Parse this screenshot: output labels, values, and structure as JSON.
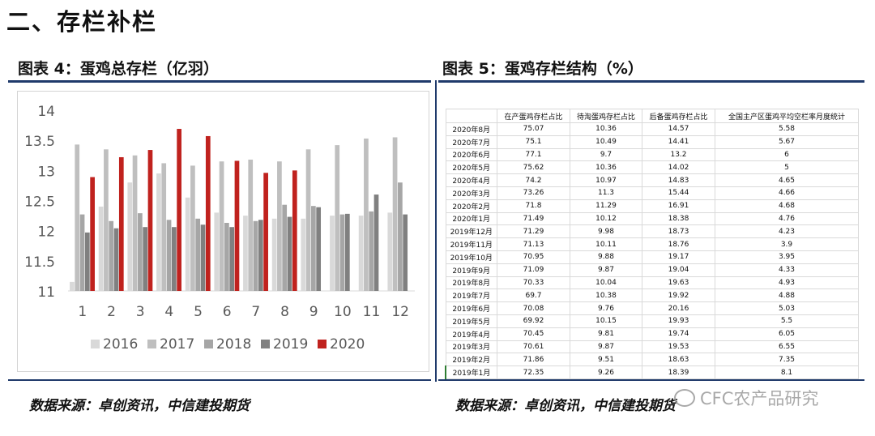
{
  "section": {
    "title": "二、存栏补栏"
  },
  "figure4": {
    "title": "图表 4：蛋鸡总存栏（亿羽）"
  },
  "figure5": {
    "title": "图表 5：蛋鸡存栏结构（%）"
  },
  "source_left": "数据来源：卓创资讯，中信建投期货",
  "source_right": "数据来源：卓创资讯，中信建投期货",
  "watermark": "CFC农产品研究",
  "colors": {
    "s2016": "#d9d9d9",
    "s2017": "#bfbfbf",
    "s2018": "#a6a6a6",
    "s2019": "#808080",
    "s2020": "#c0221e",
    "rule": "#1f3a6b"
  },
  "chart_data": {
    "type": "bar",
    "categories": [
      "1",
      "2",
      "3",
      "4",
      "5",
      "6",
      "7",
      "8",
      "9",
      "10",
      "11",
      "12"
    ],
    "ylim": [
      11,
      14
    ],
    "yticks": [
      "11",
      "11.5",
      "12",
      "12.5",
      "13",
      "13.5",
      "14"
    ],
    "legend_position": "bottom",
    "grid": false,
    "series": [
      {
        "name": "2016",
        "values": [
          11.15,
          12.4,
          12.8,
          12.95,
          12.55,
          12.3,
          12.25,
          12.2,
          12.2,
          12.25,
          12.25,
          12.3
        ]
      },
      {
        "name": "2017",
        "values": [
          13.43,
          13.35,
          13.25,
          13.12,
          13.08,
          13.15,
          13.18,
          13.15,
          13.35,
          13.42,
          13.53,
          13.55
        ]
      },
      {
        "name": "2018",
        "values": [
          12.27,
          12.16,
          12.29,
          12.18,
          12.2,
          12.13,
          12.16,
          12.43,
          12.41,
          12.27,
          12.32,
          12.8
        ]
      },
      {
        "name": "2019",
        "values": [
          11.97,
          12.04,
          12.06,
          12.06,
          12.1,
          12.06,
          12.18,
          12.23,
          12.39,
          12.28,
          12.6,
          12.27
        ]
      },
      {
        "name": "2020",
        "values": [
          12.89,
          13.22,
          13.34,
          13.69,
          13.57,
          13.16,
          12.96,
          13.0,
          null,
          null,
          null,
          null
        ]
      }
    ]
  },
  "table": {
    "headers": [
      "",
      "在产蛋鸡存栏占比",
      "待淘蛋鸡存栏占比",
      "后备蛋鸡存栏占比",
      "全国主产区蛋鸡平均空栏率月度统计"
    ],
    "rows": [
      [
        "2020年8月",
        "75.07",
        "10.36",
        "14.57",
        "5.58"
      ],
      [
        "2020年7月",
        "75.1",
        "10.49",
        "14.41",
        "5.67"
      ],
      [
        "2020年6月",
        "77.1",
        "9.7",
        "13.2",
        "6"
      ],
      [
        "2020年5月",
        "75.62",
        "10.36",
        "14.02",
        "5"
      ],
      [
        "2020年4月",
        "74.2",
        "10.97",
        "14.83",
        "4.65"
      ],
      [
        "2020年3月",
        "73.26",
        "11.3",
        "15.44",
        "4.66"
      ],
      [
        "2020年2月",
        "71.8",
        "11.29",
        "16.91",
        "4.68"
      ],
      [
        "2020年1月",
        "71.49",
        "10.12",
        "18.38",
        "4.76"
      ],
      [
        "2019年12月",
        "71.29",
        "9.98",
        "18.73",
        "4.23"
      ],
      [
        "2019年11月",
        "71.13",
        "10.11",
        "18.76",
        "3.9"
      ],
      [
        "2019年10月",
        "70.95",
        "9.88",
        "19.17",
        "3.95"
      ],
      [
        "2019年9月",
        "71.09",
        "9.87",
        "19.04",
        "4.33"
      ],
      [
        "2019年8月",
        "70.33",
        "10.04",
        "19.63",
        "4.93"
      ],
      [
        "2019年7月",
        "69.7",
        "10.38",
        "19.92",
        "4.88"
      ],
      [
        "2019年6月",
        "70.08",
        "9.76",
        "20.16",
        "5.03"
      ],
      [
        "2019年5月",
        "69.92",
        "10.15",
        "19.93",
        "5.5"
      ],
      [
        "2019年4月",
        "70.45",
        "9.81",
        "19.74",
        "6.05"
      ],
      [
        "2019年3月",
        "70.61",
        "9.87",
        "19.53",
        "6.55"
      ],
      [
        "2019年2月",
        "71.86",
        "9.51",
        "18.63",
        "7.35"
      ],
      [
        "2019年1月",
        "72.35",
        "9.26",
        "18.39",
        "8.1"
      ]
    ]
  }
}
